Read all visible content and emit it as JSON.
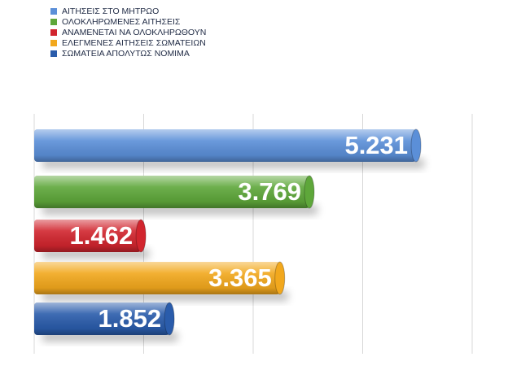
{
  "chart_data": {
    "type": "bar",
    "orientation": "horizontal",
    "categories": [
      "ΑΙΤΗΣΕΙΣ ΣΤΟ ΜΗΤΡΩΟ",
      "ΟΛΟΚΛΗΡΩΜΕΝΕΣ ΑΙΤΗΣΕΙΣ",
      "ΑΝΑΜΕΝΕΤΑΙ ΝΑ ΟΛΟΚΛΗΡΩΘΟΥΝ",
      "ΕΛΕΓΜΕΝΕΣ ΑΙΤΗΣΕΙΣ ΣΩΜΑΤΕΙΩΝ",
      "ΣΩΜΑΤΕΙΑ ΑΠΟΛΥΤΩΣ ΝΟΜΙΜΑ"
    ],
    "values": [
      5231,
      3769,
      1462,
      3365,
      1852
    ],
    "value_labels": [
      "5.231",
      "3.769",
      "1.462",
      "3.365",
      "1.852"
    ],
    "colors": [
      "#5b8fd8",
      "#5ea73a",
      "#d1252e",
      "#f2a81d",
      "#2a5cab"
    ],
    "xlim": [
      0,
      6000
    ],
    "xticks": [
      0,
      1500,
      3000,
      4500,
      6000
    ],
    "grid": true
  }
}
